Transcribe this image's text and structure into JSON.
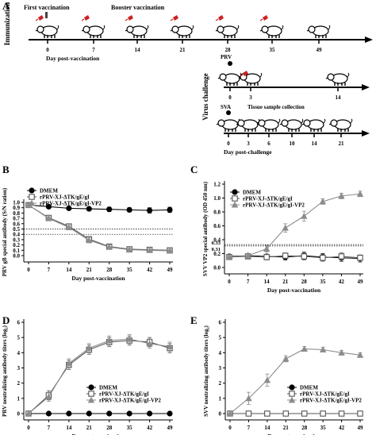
{
  "panels": {
    "A": "A",
    "B": "B",
    "C": "C",
    "D": "D",
    "E": "E"
  },
  "timeline": {
    "immunization_label": "Immunization",
    "first_vaccination": "First vaccination",
    "booster_vaccination": "Booster vaccination",
    "vaccination_days": [
      "0",
      "7",
      "14",
      "21",
      "28",
      "35",
      "49"
    ],
    "day_post_vaccination": "Day post-vaccination",
    "virus_challenge_label": "Virus challenge",
    "prv_label": "PRV",
    "prv_days": [
      "0",
      "3",
      "14"
    ],
    "sva_label": "SVA",
    "tissue_collection": "Tissue sample collection",
    "sva_days": [
      "0",
      "3",
      "6",
      "10",
      "14",
      "21"
    ],
    "day_post_challenge": "Day post-challenge"
  },
  "legend": {
    "dmem": "DMEM",
    "gegi": "rPRV-XJ-ΔTK/gE/gI",
    "vp2": "rPRV-XJ-ΔTK/gE/gI-VP2"
  },
  "colors": {
    "dmem": "#000000",
    "gegi": "#555555",
    "vp2": "#8c8c8c",
    "syringe": "#cc2222"
  },
  "chart_data": [
    {
      "panel": "B",
      "type": "line",
      "ylabel": "PRV gB special antibody (S/N ration)",
      "xlabel": "Day post-vaccination",
      "x": [
        0,
        7,
        14,
        21,
        28,
        35,
        42,
        49
      ],
      "x_ticks": [
        "0",
        "7",
        "14",
        "21",
        "28",
        "35",
        "42",
        "49"
      ],
      "ylim": [
        0.0,
        1.0
      ],
      "y_ticks": [
        "0.0",
        "0.1",
        "0.2",
        "0.3",
        "0.4",
        "0.5",
        "0.6",
        "0.7",
        "0.8",
        "0.9",
        "1.0"
      ],
      "thresholds": [
        0.5,
        0.4
      ],
      "series": [
        {
          "name": "DMEM",
          "values": [
            0.95,
            0.92,
            0.89,
            0.88,
            0.87,
            0.86,
            0.85,
            0.86
          ],
          "err": [
            0.02,
            0.03,
            0.03,
            0.03,
            0.04,
            0.04,
            0.05,
            0.05
          ]
        },
        {
          "name": "rPRV-XJ-ΔTK/gE/gI",
          "values": [
            0.95,
            0.71,
            0.55,
            0.31,
            0.17,
            0.12,
            0.11,
            0.1
          ],
          "err": [
            0.02,
            0.03,
            0.04,
            0.05,
            0.04,
            0.03,
            0.03,
            0.03
          ]
        },
        {
          "name": "rPRV-XJ-ΔTK/gE/gI-VP2",
          "values": [
            0.95,
            0.7,
            0.53,
            0.29,
            0.16,
            0.11,
            0.1,
            0.09
          ],
          "err": [
            0.02,
            0.03,
            0.04,
            0.05,
            0.04,
            0.03,
            0.03,
            0.03
          ]
        }
      ]
    },
    {
      "panel": "C",
      "type": "line",
      "ylabel": "SVV VP2 special antibody (OD 450 nm)",
      "xlabel": "Day post-vaccination",
      "x": [
        0,
        7,
        14,
        21,
        28,
        35,
        42,
        49
      ],
      "x_ticks": [
        "0",
        "7",
        "14",
        "21",
        "28",
        "35",
        "42",
        "49"
      ],
      "ylim": [
        0.0,
        1.2
      ],
      "y_ticks": [
        "0.0",
        "0.2",
        "0.4",
        "0.6",
        "0.8",
        "1.0",
        "1.2"
      ],
      "thresholds": [
        0.33,
        0.31
      ],
      "threshold_labels": [
        "0.33",
        "0.31"
      ],
      "series": [
        {
          "name": "DMEM",
          "values": [
            0.16,
            0.17,
            0.16,
            0.15,
            0.17,
            0.15,
            0.14,
            0.13
          ],
          "err": [
            0.02,
            0.03,
            0.03,
            0.04,
            0.05,
            0.05,
            0.05,
            0.05
          ]
        },
        {
          "name": "rPRV-XJ-ΔTK/gE/gI",
          "values": [
            0.15,
            0.16,
            0.15,
            0.17,
            0.16,
            0.14,
            0.16,
            0.14
          ],
          "err": [
            0.02,
            0.03,
            0.04,
            0.04,
            0.05,
            0.05,
            0.05,
            0.04
          ]
        },
        {
          "name": "rPRV-XJ-ΔTK/gE/gI-VP2",
          "values": [
            0.15,
            0.17,
            0.27,
            0.57,
            0.74,
            0.95,
            1.03,
            1.06
          ],
          "err": [
            0.02,
            0.03,
            0.05,
            0.06,
            0.07,
            0.04,
            0.04,
            0.04
          ]
        }
      ]
    },
    {
      "panel": "D",
      "type": "line",
      "ylabel": "PRV neutralizing antibody titers (log₂)",
      "xlabel": "Day post-vaccination",
      "x": [
        0,
        7,
        14,
        21,
        28,
        35,
        42,
        49
      ],
      "x_ticks": [
        "0",
        "7",
        "14",
        "21",
        "28",
        "35",
        "42",
        "49"
      ],
      "ylim": [
        0,
        6
      ],
      "y_ticks": [
        "0",
        "1",
        "2",
        "3",
        "4",
        "5",
        "6"
      ],
      "series": [
        {
          "name": "DMEM",
          "values": [
            0,
            0,
            0,
            0,
            0,
            0,
            0,
            0
          ],
          "err": [
            0,
            0,
            0,
            0,
            0,
            0,
            0,
            0
          ]
        },
        {
          "name": "rPRV-XJ-ΔTK/gE/gI",
          "values": [
            0,
            1.2,
            3.2,
            4.2,
            4.7,
            4.8,
            4.7,
            4.3
          ],
          "err": [
            0,
            0.3,
            0.3,
            0.3,
            0.3,
            0.3,
            0.3,
            0.3
          ]
        },
        {
          "name": "rPRV-XJ-ΔTK/gE/gI-VP2",
          "values": [
            0,
            1.1,
            3.3,
            4.3,
            4.8,
            4.9,
            4.6,
            4.4
          ],
          "err": [
            0,
            0.3,
            0.3,
            0.3,
            0.3,
            0.3,
            0.3,
            0.3
          ]
        }
      ]
    },
    {
      "panel": "E",
      "type": "line",
      "ylabel": "SVV neutralizing antibody titers (log₂)",
      "xlabel": "Day post-vaccination",
      "x": [
        0,
        7,
        14,
        21,
        28,
        35,
        42,
        49
      ],
      "x_ticks": [
        "0",
        "7",
        "14",
        "21",
        "28",
        "35",
        "42",
        "49"
      ],
      "ylim": [
        0,
        6
      ],
      "y_ticks": [
        "0",
        "1",
        "2",
        "3",
        "4",
        "5",
        "6"
      ],
      "series": [
        {
          "name": "DMEM",
          "values": [
            0,
            0,
            0,
            0,
            0,
            0,
            0,
            0
          ],
          "err": [
            0,
            0,
            0,
            0,
            0,
            0,
            0,
            0
          ]
        },
        {
          "name": "rPRV-XJ-ΔTK/gE/gI",
          "values": [
            0,
            0,
            0,
            0,
            0,
            0,
            0,
            0
          ],
          "err": [
            0,
            0,
            0,
            0,
            0,
            0,
            0,
            0
          ]
        },
        {
          "name": "rPRV-XJ-ΔTK/gE/gI-VP2",
          "values": [
            0,
            1.0,
            2.2,
            3.6,
            4.25,
            4.2,
            4.0,
            3.85
          ],
          "err": [
            0,
            0.4,
            0.4,
            0.2,
            0.15,
            0.15,
            0.15,
            0.15
          ]
        }
      ]
    }
  ]
}
